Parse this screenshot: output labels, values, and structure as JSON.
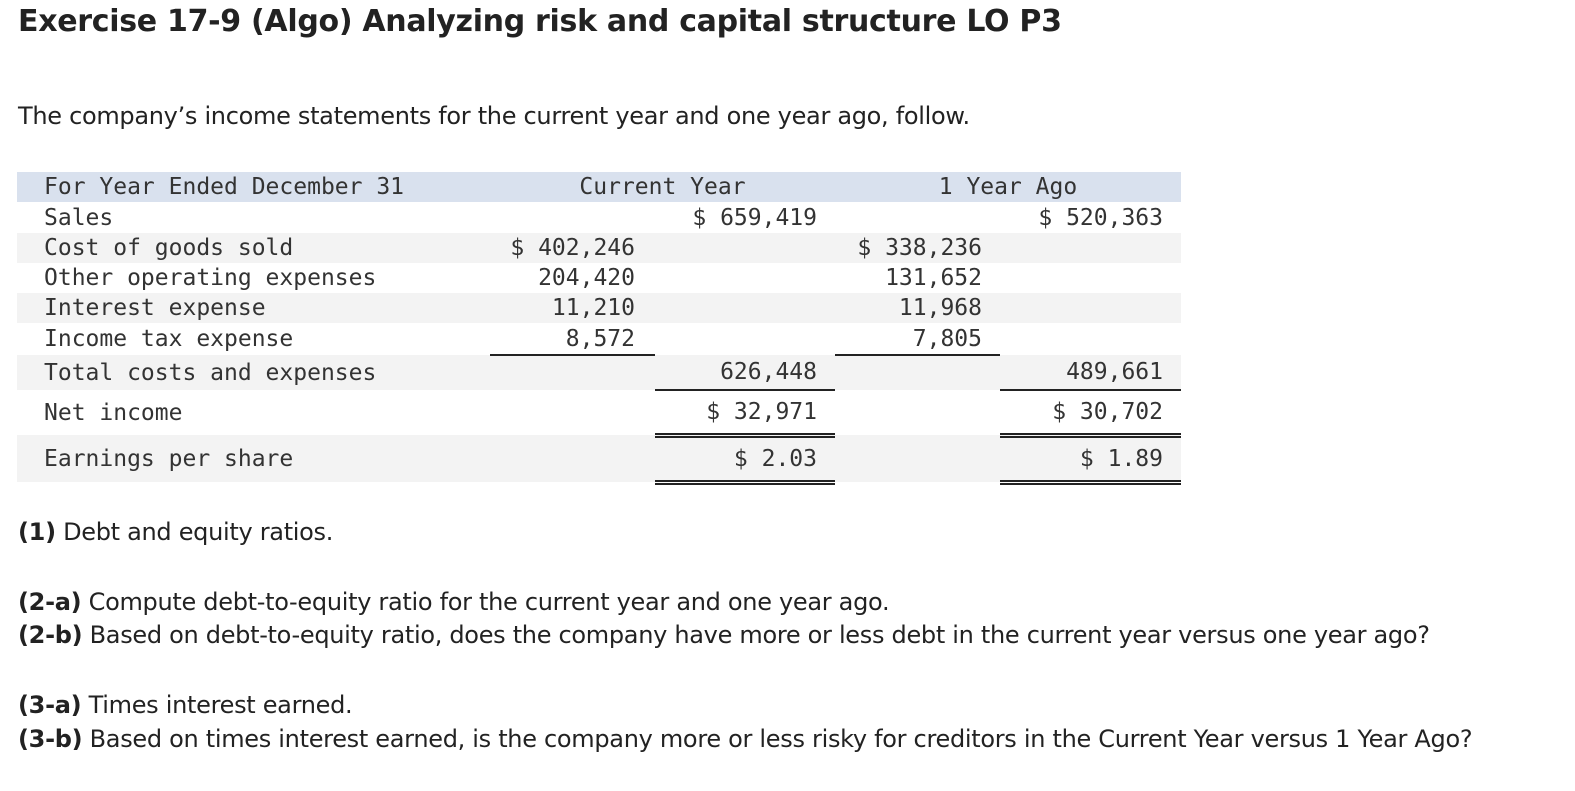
{
  "header": {
    "title": "Exercise 17-9 (Algo) Analyzing risk and capital structure LO P3"
  },
  "intro": "The company’s income statements for the current year and one year ago, follow.",
  "table": {
    "header": [
      "For Year Ended December 31",
      "Current Year",
      "1 Year Ago"
    ],
    "rows": [
      {
        "label": "Sales",
        "current_total": "$ 659,419",
        "ago_total": "$ 520,363"
      },
      {
        "label": "Cost of goods sold",
        "current_detail": "$ 402,246",
        "ago_detail": "$ 338,236"
      },
      {
        "label": "Other operating expenses",
        "current_detail": "204,420",
        "ago_detail": "131,652"
      },
      {
        "label": "Interest expense",
        "current_detail": "11,210",
        "ago_detail": "11,968"
      },
      {
        "label": "Income tax expense",
        "current_detail": "8,572",
        "ago_detail": "7,805"
      },
      {
        "label": "Total costs and expenses",
        "current_total": "626,448",
        "ago_total": "489,661"
      },
      {
        "label": "Net income",
        "current_total": "$ 32,971",
        "ago_total": "$ 30,702"
      },
      {
        "label": "Earnings per share",
        "current_total": "$ 2.03",
        "ago_total": "$ 1.89"
      }
    ]
  },
  "questions": [
    {
      "label": "(1)",
      "text": "Debt and equity ratios."
    },
    {
      "label": "(2-a)",
      "text": "Compute debt-to-equity ratio for the current year and one year ago."
    },
    {
      "label": "(2-b)",
      "text": "Based on debt-to-equity ratio, does the company have more or less debt in the current year versus one year ago?"
    },
    {
      "label": "(3-a)",
      "text": "Times interest earned."
    },
    {
      "label": "(3-b)",
      "text": "Based on times interest earned, is the company more or less risky for creditors in the Current Year versus 1 Year Ago?"
    }
  ]
}
